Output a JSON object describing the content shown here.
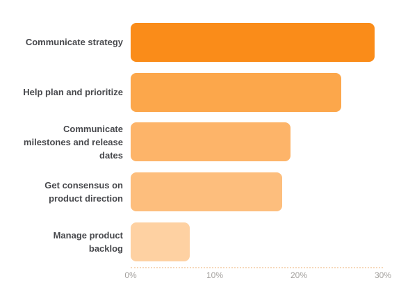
{
  "chart_data": {
    "type": "bar",
    "orientation": "horizontal",
    "title": "",
    "categories": [
      "Communicate strategy",
      "Help plan and prioritize",
      "Communicate milestones and release dates",
      "Get consensus on product direction",
      "Manage product backlog"
    ],
    "category_lines": [
      [
        "Communicate strategy"
      ],
      [
        "Help plan and prioritize"
      ],
      [
        "Communicate",
        "milestones and release",
        "dates"
      ],
      [
        "Get consensus on",
        "product direction"
      ],
      [
        "Manage product",
        "backlog"
      ]
    ],
    "values": [
      29,
      25,
      19,
      18,
      7
    ],
    "unit": "%",
    "xlim": [
      0,
      30
    ],
    "x_ticks": [
      "0%",
      "10%",
      "20%",
      "30%"
    ],
    "bar_colors": [
      "#fa8c19",
      "#fca74b",
      "#fdb469",
      "#fdbe7d",
      "#fed1a2"
    ],
    "grid": false,
    "legend": false,
    "axis_line_style": "dotted",
    "colors": {
      "background": "#ffffff",
      "label_text": "#47484c",
      "tick_text": "#a3a09d",
      "axis_line": "#f6d8ba"
    }
  }
}
